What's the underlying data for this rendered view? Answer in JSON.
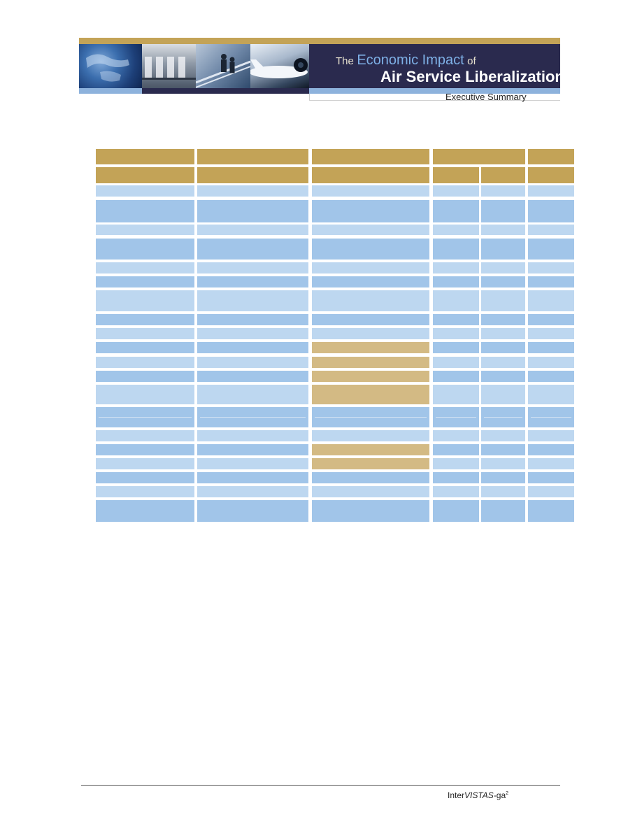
{
  "header": {
    "title_prefix": "The",
    "title_main": "Economic Impact",
    "title_suffix": "of",
    "title_line2": "Air Service Liberalization",
    "subtitle": "Executive Summary"
  },
  "footer": {
    "brand_part1": "Inter",
    "brand_part2": "VISTAS",
    "brand_part3": "-ga",
    "brand_sup": "2"
  },
  "colors": {
    "gold": "#c3a357",
    "gold_light": "#d3ba84",
    "blue_light": "#bdd7f0",
    "blue_mid": "#a1c5e9",
    "navy": "#2a2a4e"
  },
  "table": {
    "column_count": 6,
    "row_count": 23,
    "header_rows": 2,
    "highlighted_rows_col3": [
      11,
      12,
      13,
      14,
      17,
      18
    ],
    "cell_text": "not legible"
  }
}
